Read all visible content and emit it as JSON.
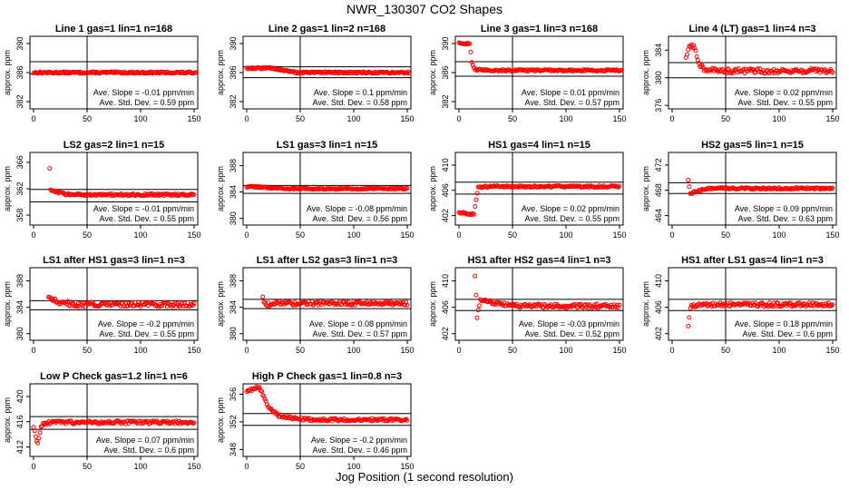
{
  "title": "NWR_130307  CO2 Shapes",
  "xlabel": "Jog Position (1 second resolution)",
  "colors": {
    "points": "#ff0000",
    "axes": "#000000",
    "background": "#ffffff"
  },
  "chart_data": [
    {
      "type": "scatter",
      "title": "Line 1 gas=1 lin=1 n=168",
      "ylabel": "approx. ppm",
      "xlim": [
        0,
        150
      ],
      "ylim": [
        381,
        391
      ],
      "yticks": [
        382,
        386,
        390
      ],
      "xticks": [
        0,
        50,
        100,
        150
      ],
      "hlines": [
        387.5,
        385.8
      ],
      "vline": 50,
      "slope": "Ave. Slope = -0.01  ppm/min",
      "std": "Ave. Std. Dev. = 0.59  ppm",
      "profile": {
        "start": 0,
        "end": 152,
        "base": 386.0,
        "transient": [],
        "noise": 0.12
      }
    },
    {
      "type": "scatter",
      "title": "Line 2 gas=1 lin=2 n=168",
      "ylabel": "approx. ppm",
      "xlim": [
        0,
        150
      ],
      "ylim": [
        381,
        391
      ],
      "yticks": [
        382,
        386,
        390
      ],
      "xticks": [
        0,
        50,
        100,
        150
      ],
      "hlines": [
        386.8,
        385.3
      ],
      "vline": 50,
      "slope": "Ave. Slope =  0.1  ppm/min",
      "std": "Ave. Std. Dev. = 0.58  ppm",
      "profile": {
        "start": 0,
        "end": 152,
        "base": 386.0,
        "transient": [
          [
            0,
            386.6
          ],
          [
            25,
            386.6
          ],
          [
            45,
            386.0
          ]
        ],
        "noise": 0.12
      }
    },
    {
      "type": "scatter",
      "title": "Line 3 gas=1 lin=3 n=168",
      "ylabel": "approx. ppm",
      "xlim": [
        0,
        150
      ],
      "ylim": [
        381,
        391
      ],
      "yticks": [
        382,
        386,
        390
      ],
      "xticks": [
        0,
        50,
        100,
        150
      ],
      "hlines": [
        387.5,
        385.5
      ],
      "vline": 50,
      "slope": "Ave. Slope =  0.01  ppm/min",
      "std": "Ave. Std. Dev. = 0.57  ppm",
      "profile": {
        "start": 0,
        "end": 152,
        "base": 386.3,
        "transient": [
          [
            0,
            390.0
          ],
          [
            10,
            390.0
          ],
          [
            12,
            387.5
          ],
          [
            15,
            386.4
          ]
        ],
        "noise": 0.12
      }
    },
    {
      "type": "scatter",
      "title": "Line 4 (LT) gas=1 lin=4 n=3",
      "ylabel": "approx. ppm",
      "xlim": [
        0,
        150
      ],
      "ylim": [
        375.5,
        386
      ],
      "yticks": [
        376,
        380,
        384
      ],
      "xticks": [
        0,
        50,
        100,
        150
      ],
      "hlines": [
        382.2,
        380.0
      ],
      "vline": 50,
      "slope": "Ave. Slope =  0.02  ppm/min",
      "std": "Ave. Std. Dev. = 0.55  ppm",
      "profile": {
        "start": 13,
        "end": 150,
        "base": 381.0,
        "transient": [
          [
            13,
            383.0
          ],
          [
            16,
            384.5
          ],
          [
            21,
            384.5
          ],
          [
            24,
            382.3
          ],
          [
            30,
            381.3
          ]
        ],
        "noise": 0.35
      }
    },
    {
      "type": "scatter",
      "title": "LS2 gas=2 lin=1 n=15",
      "ylabel": "approx. ppm",
      "xlim": [
        0,
        150
      ],
      "ylim": [
        356.5,
        367.5
      ],
      "yticks": [
        358,
        362,
        366
      ],
      "xticks": [
        0,
        50,
        100,
        150
      ],
      "hlines": [
        361.9,
        360.0
      ],
      "vline": 50,
      "slope": "Ave. Slope = -0.01  ppm/min",
      "std": "Ave. Std. Dev. = 0.55  ppm",
      "profile": {
        "start": 15,
        "end": 150,
        "base": 361.1,
        "transient": [
          [
            15,
            365.0
          ],
          [
            16,
            361.7
          ],
          [
            22,
            361.5
          ]
        ],
        "noise": 0.15
      }
    },
    {
      "type": "scatter",
      "title": "LS1 gas=3 lin=1 n=15",
      "ylabel": "approx. ppm",
      "xlim": [
        0,
        150
      ],
      "ylim": [
        379,
        390
      ],
      "yticks": [
        380,
        384,
        388
      ],
      "xticks": [
        0,
        50,
        100,
        150
      ],
      "hlines": [
        385.0,
        383.8
      ],
      "vline": 50,
      "slope": "Ave. Slope = -0.08  ppm/min",
      "std": "Ave. Std. Dev. = 0.56  ppm",
      "profile": {
        "start": 0,
        "end": 150,
        "base": 384.5,
        "transient": [
          [
            0,
            384.8
          ],
          [
            30,
            384.6
          ]
        ],
        "noise": 0.12
      }
    },
    {
      "type": "scatter",
      "title": "HS1 gas=4 lin=1 n=15",
      "ylabel": "approx. ppm",
      "xlim": [
        0,
        150
      ],
      "ylim": [
        400.5,
        412
      ],
      "yticks": [
        402,
        406,
        410
      ],
      "xticks": [
        0,
        50,
        100,
        150
      ],
      "hlines": [
        407.3,
        405.4
      ],
      "vline": 50,
      "slope": "Ave. Slope =  0.02  ppm/min",
      "std": "Ave. Std. Dev. = 0.55  ppm",
      "profile": {
        "start": 0,
        "end": 150,
        "base": 406.6,
        "transient": [
          [
            0,
            402.5
          ],
          [
            14,
            402.2
          ],
          [
            16,
            404.5
          ],
          [
            18,
            406.5
          ]
        ],
        "noise": 0.15
      }
    },
    {
      "type": "scatter",
      "title": "HS2 gas=5 lin=1 n=15",
      "ylabel": "approx. ppm",
      "xlim": [
        0,
        150
      ],
      "ylim": [
        462.5,
        474
      ],
      "yticks": [
        464,
        468,
        472
      ],
      "xticks": [
        0,
        50,
        100,
        150
      ],
      "hlines": [
        469.2,
        467.5
      ],
      "vline": 50,
      "slope": "Ave. Slope =  0.09  ppm/min",
      "std": "Ave. Std. Dev. = 0.63  ppm",
      "profile": {
        "start": 15,
        "end": 150,
        "base": 468.3,
        "transient": [
          [
            15,
            469.5
          ],
          [
            17,
            467.5
          ],
          [
            22,
            467.8
          ],
          [
            30,
            468.2
          ]
        ],
        "noise": 0.15
      }
    },
    {
      "type": "scatter",
      "title": "LS1 after HS1 gas=3 lin=1 n=3",
      "ylabel": "approx. ppm",
      "xlim": [
        0,
        150
      ],
      "ylim": [
        379,
        390
      ],
      "yticks": [
        380,
        384,
        388
      ],
      "xticks": [
        0,
        50,
        100,
        150
      ],
      "hlines": [
        385.0,
        383.6
      ],
      "vline": 50,
      "slope": "Ave. Slope = -0.2  ppm/min",
      "std": "Ave. Std. Dev. = 0.55  ppm",
      "profile": {
        "start": 14,
        "end": 150,
        "base": 384.4,
        "transient": [
          [
            14,
            385.7
          ],
          [
            20,
            385.0
          ],
          [
            30,
            384.6
          ]
        ],
        "noise": 0.35
      }
    },
    {
      "type": "scatter",
      "title": "LS1 after LS2 gas=3 lin=1 n=3",
      "ylabel": "approx. ppm",
      "xlim": [
        0,
        150
      ],
      "ylim": [
        379,
        390
      ],
      "yticks": [
        380,
        384,
        388
      ],
      "xticks": [
        0,
        50,
        100,
        150
      ],
      "hlines": [
        385.2,
        383.8
      ],
      "vline": 50,
      "slope": "Ave. Slope =  0.08  ppm/min",
      "std": "Ave. Std. Dev. = 0.57  ppm",
      "profile": {
        "start": 15,
        "end": 150,
        "base": 384.6,
        "transient": [
          [
            15,
            385.5
          ],
          [
            18,
            384.3
          ],
          [
            25,
            384.6
          ]
        ],
        "noise": 0.3
      }
    },
    {
      "type": "scatter",
      "title": "HS1 after HS2 gas=4 lin=1 n=3",
      "ylabel": "approx. ppm",
      "xlim": [
        0,
        150
      ],
      "ylim": [
        401,
        412
      ],
      "yticks": [
        402,
        406,
        410
      ],
      "xticks": [
        0,
        50,
        100,
        150
      ],
      "hlines": [
        407.2,
        405.5
      ],
      "vline": 50,
      "slope": "Ave. Slope = -0.03  ppm/min",
      "std": "Ave. Std. Dev. = 0.52  ppm",
      "profile": {
        "start": 15,
        "end": 150,
        "base": 406.2,
        "transient": [
          [
            15,
            411.0
          ],
          [
            17,
            404.5
          ],
          [
            20,
            407.2
          ],
          [
            40,
            406.5
          ]
        ],
        "noise": 0.3
      }
    },
    {
      "type": "scatter",
      "title": "HS1 after LS1 gas=4 lin=1 n=3",
      "ylabel": "approx. ppm",
      "xlim": [
        0,
        150
      ],
      "ylim": [
        401,
        412
      ],
      "yticks": [
        402,
        406,
        410
      ],
      "xticks": [
        0,
        50,
        100,
        150
      ],
      "hlines": [
        407.2,
        405.5
      ],
      "vline": 50,
      "slope": "Ave. Slope =  0.18  ppm/min",
      "std": "Ave. Std. Dev. = 0.6  ppm",
      "profile": {
        "start": 15,
        "end": 150,
        "base": 406.4,
        "transient": [
          [
            15,
            403.2
          ],
          [
            17,
            406.0
          ],
          [
            25,
            406.3
          ]
        ],
        "noise": 0.3
      }
    },
    {
      "type": "scatter",
      "title": "Low P Check gas=1.2 lin=1 n=6",
      "ylabel": "approx. ppm",
      "xlim": [
        0,
        150
      ],
      "ylim": [
        410.5,
        422
      ],
      "yticks": [
        412,
        416,
        420
      ],
      "xticks": [
        0,
        50,
        100,
        150
      ],
      "hlines": [
        416.8,
        414.8
      ],
      "vline": 50,
      "slope": "Ave. Slope =  0.07  ppm/min",
      "std": "Ave. Std. Dev. = 0.6  ppm",
      "profile": {
        "start": 0,
        "end": 150,
        "base": 415.9,
        "transient": [
          [
            0,
            415.0
          ],
          [
            4,
            412.5
          ],
          [
            7,
            415.2
          ],
          [
            10,
            415.8
          ]
        ],
        "noise": 0.25
      }
    },
    {
      "type": "scatter",
      "title": "High P Check gas=1 lin=0.8 n=3",
      "ylabel": "approx. ppm",
      "xlim": [
        0,
        150
      ],
      "ylim": [
        347,
        357.5
      ],
      "yticks": [
        348,
        352,
        356
      ],
      "xticks": [
        0,
        50,
        100,
        150
      ],
      "hlines": [
        353.2,
        351.5
      ],
      "vline": 50,
      "slope": "Ave. Slope = -0.2  ppm/min",
      "std": "Ave. Std. Dev. = 0.46  ppm",
      "profile": {
        "start": 0,
        "end": 150,
        "base": 352.3,
        "transient": [
          [
            0,
            356.5
          ],
          [
            12,
            357.0
          ],
          [
            16,
            355.5
          ],
          [
            22,
            353.8
          ],
          [
            30,
            352.9
          ],
          [
            50,
            352.4
          ]
        ],
        "noise": 0.2
      }
    }
  ]
}
